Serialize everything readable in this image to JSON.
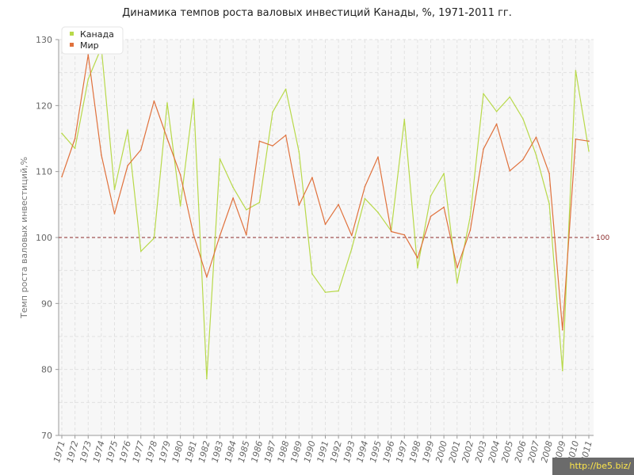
{
  "chart_data": {
    "type": "line",
    "title": "Динамика темпов роста валовых инвестиций Канады, %, 1971-2011 гг.",
    "ylabel": "Темп роста валовых инвестиций,%",
    "xlabel": "",
    "ylim": [
      70,
      130
    ],
    "yticks": [
      "70",
      "80",
      "90",
      "100",
      "110",
      "120",
      "130"
    ],
    "grid": true,
    "legend_position": "top-left",
    "categories": [
      "1971",
      "1972",
      "1973",
      "1974",
      "1975",
      "1976",
      "1977",
      "1978",
      "1979",
      "1980",
      "1981",
      "1982",
      "1983",
      "1984",
      "1985",
      "1986",
      "1987",
      "1988",
      "1989",
      "1990",
      "1991",
      "1992",
      "1993",
      "1994",
      "1995",
      "1996",
      "1997",
      "1998",
      "1999",
      "2000",
      "2001",
      "2002",
      "2003",
      "2004",
      "2005",
      "2006",
      "2007",
      "2008",
      "2009",
      "2010",
      "2011"
    ],
    "series": [
      {
        "name": "Канада",
        "color": "#b8d94a",
        "values": [
          115.8,
          113.5,
          124.0,
          128.8,
          107.3,
          116.3,
          97.9,
          99.9,
          120.4,
          104.8,
          121.0,
          78.6,
          111.9,
          107.6,
          104.2,
          105.3,
          119.0,
          122.5,
          113.0,
          94.5,
          91.7,
          91.9,
          98.3,
          105.9,
          103.8,
          101.0,
          117.9,
          95.4,
          106.3,
          109.7,
          93.1,
          103.2,
          121.8,
          119.1,
          121.3,
          118.0,
          112.5,
          105.1,
          79.8,
          125.3,
          113.1
        ]
      },
      {
        "name": "Мир",
        "color": "#e0713c",
        "values": [
          109.2,
          115.0,
          127.7,
          112.5,
          103.6,
          110.9,
          113.3,
          120.7,
          115.0,
          109.5,
          100.4,
          94.0,
          100.3,
          106.0,
          100.4,
          114.6,
          113.9,
          115.5,
          104.9,
          109.1,
          102.0,
          105.0,
          100.3,
          107.7,
          112.2,
          100.9,
          100.4,
          96.9,
          103.2,
          104.6,
          95.4,
          101.1,
          113.4,
          117.2,
          110.1,
          111.8,
          115.2,
          109.7,
          86.0,
          114.9,
          114.6
        ]
      }
    ],
    "reference_line": {
      "value": 100,
      "label": "100",
      "color": "#8b2b2b"
    }
  },
  "watermark": "http://be5.biz/"
}
